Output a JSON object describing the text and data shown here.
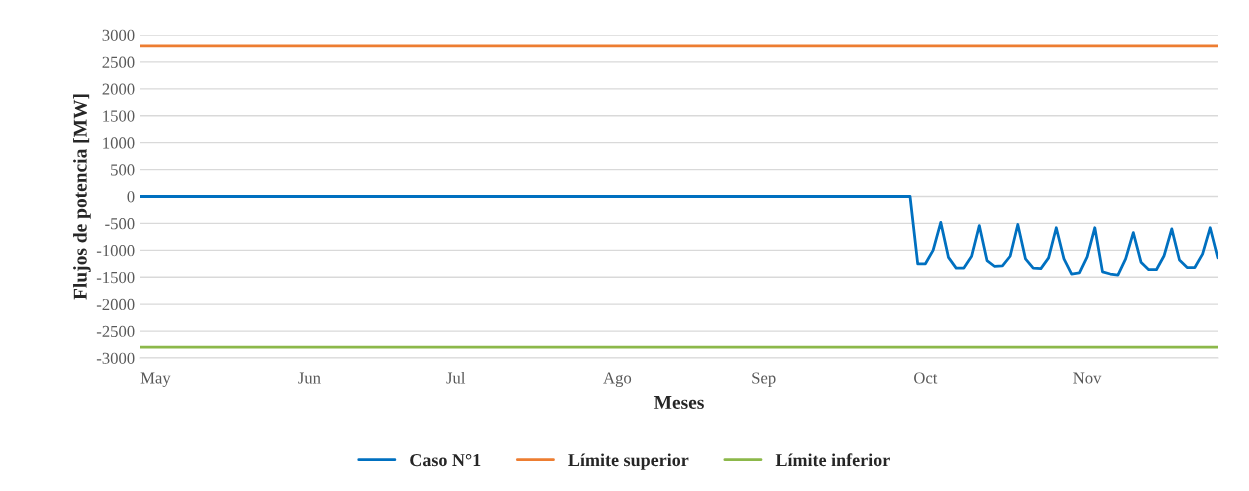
{
  "chart_data": {
    "type": "line",
    "xlabel": "Meses",
    "ylabel": "Flujos de potencia [MW]",
    "categories": [
      null,
      null,
      "May",
      null,
      null,
      null,
      null,
      null,
      null,
      null,
      null,
      null,
      null,
      null,
      null,
      null,
      null,
      null,
      null,
      null,
      null,
      null,
      "Jun",
      null,
      null,
      null,
      null,
      null,
      null,
      null,
      null,
      null,
      null,
      null,
      null,
      null,
      null,
      null,
      null,
      null,
      null,
      "Jul",
      null,
      null,
      null,
      null,
      null,
      null,
      null,
      null,
      null,
      null,
      null,
      null,
      null,
      null,
      null,
      null,
      null,
      null,
      null,
      null,
      "Ago",
      null,
      null,
      null,
      null,
      null,
      null,
      null,
      null,
      null,
      null,
      null,
      null,
      null,
      null,
      null,
      null,
      null,
      null,
      "Sep",
      null,
      null,
      null,
      null,
      null,
      null,
      null,
      null,
      null,
      null,
      null,
      null,
      null,
      null,
      null,
      null,
      null,
      null,
      null,
      null,
      "Oct",
      null,
      null,
      null,
      null,
      null,
      null,
      null,
      null,
      null,
      null,
      null,
      null,
      null,
      null,
      null,
      null,
      null,
      null,
      null,
      null,
      "Nov",
      null,
      null,
      null,
      null,
      null,
      null,
      null,
      null,
      null,
      null,
      null,
      null,
      null,
      null,
      null,
      null,
      null
    ],
    "ylim": [
      -3000,
      3000
    ],
    "yticks": [
      -3000,
      -2500,
      -2000,
      -1500,
      -1000,
      -500,
      0,
      500,
      1000,
      1500,
      2000,
      2500,
      3000
    ],
    "grid": "y",
    "legend": "bottom",
    "marker": "none",
    "line_style": "solid",
    "series": [
      {
        "name": "Caso N°1",
        "color": "#0070c0",
        "values": [
          0,
          0,
          0,
          0,
          0,
          0,
          0,
          0,
          0,
          0,
          0,
          0,
          0,
          0,
          0,
          0,
          0,
          0,
          0,
          0,
          0,
          0,
          0,
          0,
          0,
          0,
          0,
          0,
          0,
          0,
          0,
          0,
          0,
          0,
          0,
          0,
          0,
          0,
          0,
          0,
          0,
          0,
          0,
          0,
          0,
          0,
          0,
          0,
          0,
          0,
          0,
          0,
          0,
          0,
          0,
          0,
          0,
          0,
          0,
          0,
          0,
          0,
          0,
          0,
          0,
          0,
          0,
          0,
          0,
          0,
          0,
          0,
          0,
          0,
          0,
          0,
          0,
          0,
          0,
          0,
          0,
          0,
          0,
          0,
          0,
          0,
          0,
          0,
          0,
          0,
          0,
          0,
          0,
          0,
          0,
          0,
          0,
          0,
          0,
          0,
          0,
          -1250,
          -1250,
          -1000,
          -480,
          -1130,
          -1330,
          -1330,
          -1110,
          -540,
          -1190,
          -1300,
          -1290,
          -1110,
          -520,
          -1160,
          -1330,
          -1340,
          -1140,
          -580,
          -1160,
          -1440,
          -1420,
          -1120,
          -580,
          -1400,
          -1440,
          -1460,
          -1160,
          -670,
          -1220,
          -1360,
          -1360,
          -1100,
          -600,
          -1180,
          -1320,
          -1320,
          -1070,
          -580,
          -1140
        ]
      },
      {
        "name": "Límite superior",
        "color": "#ed7d31",
        "values": [
          2800,
          2800,
          2800,
          2800,
          2800,
          2800,
          2800,
          2800,
          2800,
          2800,
          2800,
          2800,
          2800,
          2800,
          2800,
          2800,
          2800,
          2800,
          2800,
          2800,
          2800,
          2800,
          2800,
          2800,
          2800,
          2800,
          2800,
          2800,
          2800,
          2800,
          2800,
          2800,
          2800,
          2800,
          2800,
          2800,
          2800,
          2800,
          2800,
          2800,
          2800,
          2800,
          2800,
          2800,
          2800,
          2800,
          2800,
          2800,
          2800,
          2800,
          2800,
          2800,
          2800,
          2800,
          2800,
          2800,
          2800,
          2800,
          2800,
          2800,
          2800,
          2800,
          2800,
          2800,
          2800,
          2800,
          2800,
          2800,
          2800,
          2800,
          2800,
          2800,
          2800,
          2800,
          2800,
          2800,
          2800,
          2800,
          2800,
          2800,
          2800,
          2800,
          2800,
          2800,
          2800,
          2800,
          2800,
          2800,
          2800,
          2800,
          2800,
          2800,
          2800,
          2800,
          2800,
          2800,
          2800,
          2800,
          2800,
          2800,
          2800,
          2800,
          2800,
          2800,
          2800,
          2800,
          2800,
          2800,
          2800,
          2800,
          2800,
          2800,
          2800,
          2800,
          2800,
          2800,
          2800,
          2800,
          2800,
          2800,
          2800,
          2800,
          2800,
          2800,
          2800,
          2800,
          2800,
          2800,
          2800,
          2800,
          2800,
          2800,
          2800,
          2800,
          2800,
          2800,
          2800,
          2800,
          2800,
          2800,
          2800
        ]
      },
      {
        "name": "Límite inferior",
        "color": "#8cb84a",
        "values": [
          -2800,
          -2800,
          -2800,
          -2800,
          -2800,
          -2800,
          -2800,
          -2800,
          -2800,
          -2800,
          -2800,
          -2800,
          -2800,
          -2800,
          -2800,
          -2800,
          -2800,
          -2800,
          -2800,
          -2800,
          -2800,
          -2800,
          -2800,
          -2800,
          -2800,
          -2800,
          -2800,
          -2800,
          -2800,
          -2800,
          -2800,
          -2800,
          -2800,
          -2800,
          -2800,
          -2800,
          -2800,
          -2800,
          -2800,
          -2800,
          -2800,
          -2800,
          -2800,
          -2800,
          -2800,
          -2800,
          -2800,
          -2800,
          -2800,
          -2800,
          -2800,
          -2800,
          -2800,
          -2800,
          -2800,
          -2800,
          -2800,
          -2800,
          -2800,
          -2800,
          -2800,
          -2800,
          -2800,
          -2800,
          -2800,
          -2800,
          -2800,
          -2800,
          -2800,
          -2800,
          -2800,
          -2800,
          -2800,
          -2800,
          -2800,
          -2800,
          -2800,
          -2800,
          -2800,
          -2800,
          -2800,
          -2800,
          -2800,
          -2800,
          -2800,
          -2800,
          -2800,
          -2800,
          -2800,
          -2800,
          -2800,
          -2800,
          -2800,
          -2800,
          -2800,
          -2800,
          -2800,
          -2800,
          -2800,
          -2800,
          -2800,
          -2800,
          -2800,
          -2800,
          -2800,
          -2800,
          -2800,
          -2800,
          -2800,
          -2800,
          -2800,
          -2800,
          -2800,
          -2800,
          -2800,
          -2800,
          -2800,
          -2800,
          -2800,
          -2800,
          -2800,
          -2800,
          -2800,
          -2800,
          -2800,
          -2800,
          -2800,
          -2800,
          -2800,
          -2800,
          -2800,
          -2800,
          -2800,
          -2800,
          -2800,
          -2800,
          -2800,
          -2800,
          -2800,
          -2800,
          -2800
        ]
      }
    ]
  }
}
